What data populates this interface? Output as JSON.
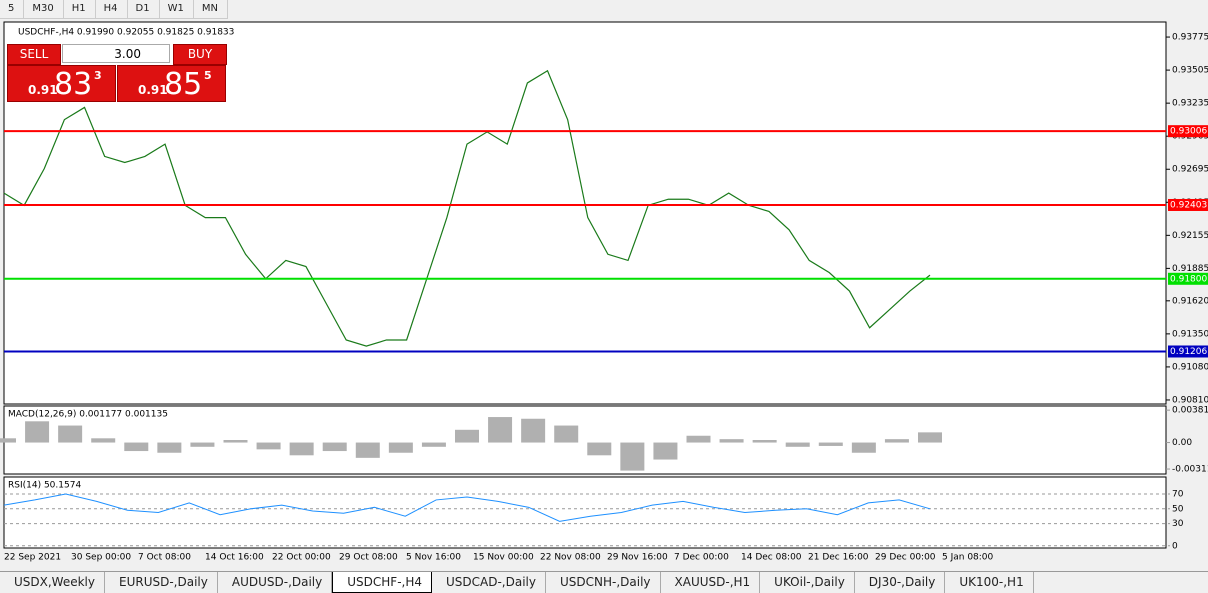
{
  "toolbar": {
    "timeframes": [
      "5",
      "M30",
      "H1",
      "H4",
      "D1",
      "W1",
      "MN"
    ]
  },
  "chart": {
    "symbol_info": "USDCHF-,H4  0.91990 0.92055 0.91825 0.91833",
    "trade_panel": {
      "sell": "SELL",
      "buy": "BUY",
      "volume": "3.00",
      "bid": {
        "big": "0.91",
        "main": "83",
        "small": "3"
      },
      "ask": {
        "big": "0.91",
        "main": "85",
        "small": "5"
      }
    },
    "ylim": [
      0.90777,
      0.93898
    ],
    "yticks": [
      0.93775,
      0.93505,
      0.93235,
      0.92965,
      0.92695,
      0.92425,
      0.92155,
      0.91885,
      {
        "value": 0.9162,
        "label": "0.91620"
      },
      {
        "value": 0.9135,
        "label": "0.91350"
      },
      {
        "value": 0.9108,
        "label": "0.91080"
      },
      {
        "value": 0.9081,
        "label": "0.90810"
      }
    ],
    "levels": [
      {
        "value": 0.93006,
        "label": "0.93006",
        "color": "#ff0000"
      },
      {
        "value": 0.92403,
        "label": "0.92403",
        "color": "#ff0000"
      },
      {
        "value": 0.918,
        "label": "0.91800",
        "color": "#00e000"
      },
      {
        "value": 0.91206,
        "label": "0.91206",
        "color": "#0000c0"
      }
    ],
    "closes": [
      0.925,
      0.924,
      0.927,
      0.931,
      0.932,
      0.928,
      0.9275,
      0.928,
      0.929,
      0.924,
      0.923,
      0.923,
      0.92,
      0.918,
      0.9195,
      0.919,
      0.916,
      0.913,
      0.9125,
      0.913,
      0.913,
      0.918,
      0.923,
      0.929,
      0.93,
      0.929,
      0.934,
      0.935,
      0.931,
      0.923,
      0.92,
      0.9195,
      0.924,
      0.9245,
      0.9245,
      0.924,
      0.925,
      0.924,
      0.9235,
      0.922,
      0.9195,
      0.9185,
      0.917,
      0.914,
      0.9155,
      0.917,
      0.9183
    ],
    "x_labels": [
      "22 Sep 2021",
      "30 Sep 00:00",
      "7 Oct 08:00",
      "14 Oct 16:00",
      "22 Oct 00:00",
      "29 Oct 08:00",
      "5 Nov 16:00",
      "15 Nov 00:00",
      "22 Nov 08:00",
      "29 Nov 16:00",
      "7 Dec 00:00",
      "14 Dec 08:00",
      "21 Dec 16:00",
      "29 Dec 00:00",
      "5 Jan 08:00"
    ],
    "macd": {
      "label": "MACD(12,26,9) 0.001177 0.001135",
      "ylim": [
        -0.0037,
        0.0043
      ],
      "yticks": [
        0.003811,
        {
          "value": 0,
          "label": "0.00"
        },
        -0.003115
      ],
      "values": [
        0.0005,
        0.0025,
        0.002,
        0.0005,
        -0.001,
        -0.0012,
        -0.0005,
        0.0003,
        -0.0008,
        -0.0015,
        -0.001,
        -0.0018,
        -0.0012,
        -0.0005,
        0.0015,
        0.003,
        0.0028,
        0.002,
        -0.0015,
        -0.0033,
        -0.002,
        0.0008,
        0.0004,
        0.0003,
        -0.0005,
        -0.0004,
        -0.0012,
        0.0004,
        0.0012
      ]
    },
    "rsi": {
      "label": "RSI(14) 50.1574",
      "ylim": [
        -3,
        93
      ],
      "yticks": [
        70,
        50,
        30,
        0
      ],
      "values": [
        55,
        62,
        70,
        60,
        48,
        45,
        58,
        42,
        50,
        55,
        47,
        44,
        52,
        40,
        62,
        66,
        60,
        52,
        33,
        40,
        45,
        55,
        60,
        52,
        45,
        48,
        50,
        42,
        58,
        62,
        50
      ]
    }
  },
  "tabs": [
    "USDX,Weekly",
    "EURUSD-,Daily",
    "AUDUSD-,Daily",
    "USDCHF-,H4",
    "USDCAD-,Daily",
    "USDCNH-,Daily",
    "XAUUSD-,H1",
    "UKOil-,Daily",
    "DJ30-,Daily",
    "UK100-,H1"
  ],
  "active_tab": 3
}
